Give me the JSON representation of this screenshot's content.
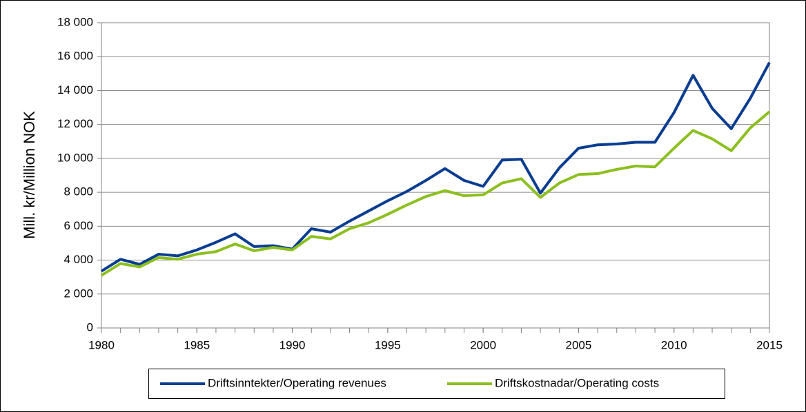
{
  "chart_data": {
    "type": "line",
    "y_label": "Mill. kr/Million NOK",
    "x": [
      1980,
      1981,
      1982,
      1983,
      1984,
      1985,
      1986,
      1987,
      1988,
      1989,
      1990,
      1991,
      1992,
      1993,
      1994,
      1995,
      1996,
      1997,
      1998,
      1999,
      2000,
      2001,
      2002,
      2003,
      2004,
      2005,
      2006,
      2007,
      2008,
      2009,
      2010,
      2011,
      2012,
      2013,
      2014,
      2015
    ],
    "series": [
      {
        "name": "Driftsinntekter/Operating revenues",
        "color": "#0a3d91",
        "values": [
          3350,
          4050,
          3750,
          4350,
          4250,
          4600,
          5050,
          5550,
          4800,
          4850,
          4650,
          5850,
          5650,
          6300,
          6900,
          7500,
          8050,
          8700,
          9400,
          8700,
          8350,
          9900,
          9950,
          7950,
          9450,
          10600,
          10800,
          10850,
          10950,
          10950,
          12700,
          14900,
          12950,
          11750,
          13550,
          15650
        ]
      },
      {
        "name": "Driftskostnadar/Operating costs",
        "color": "#8cbf1f",
        "values": [
          3100,
          3800,
          3600,
          4150,
          4050,
          4350,
          4500,
          4950,
          4550,
          4750,
          4600,
          5400,
          5250,
          5850,
          6200,
          6700,
          7250,
          7750,
          8100,
          7800,
          7850,
          8550,
          8800,
          7700,
          8550,
          9050,
          9100,
          9350,
          9550,
          9500,
          10600,
          11650,
          11150,
          10450,
          11800,
          12750
        ]
      }
    ],
    "xlim": [
      1980,
      2015
    ],
    "xticks": [
      1980,
      1985,
      1990,
      1995,
      2000,
      2005,
      2010,
      2015
    ],
    "ylim": [
      0,
      18000
    ],
    "yticks": [
      0,
      {
        "value": 2000,
        "label": "2 000"
      },
      {
        "value": 4000,
        "label": "4 000"
      },
      {
        "value": 6000,
        "label": "6 000"
      },
      {
        "value": 8000,
        "label": "8 000"
      },
      {
        "value": 10000,
        "label": "10 000"
      },
      {
        "value": 12000,
        "label": "12 000"
      },
      {
        "value": 14000,
        "label": "14 000"
      },
      {
        "value": 16000,
        "label": "16 000"
      },
      {
        "value": 18000,
        "label": "18 000"
      }
    ],
    "grid": true,
    "legend": "bottom"
  }
}
